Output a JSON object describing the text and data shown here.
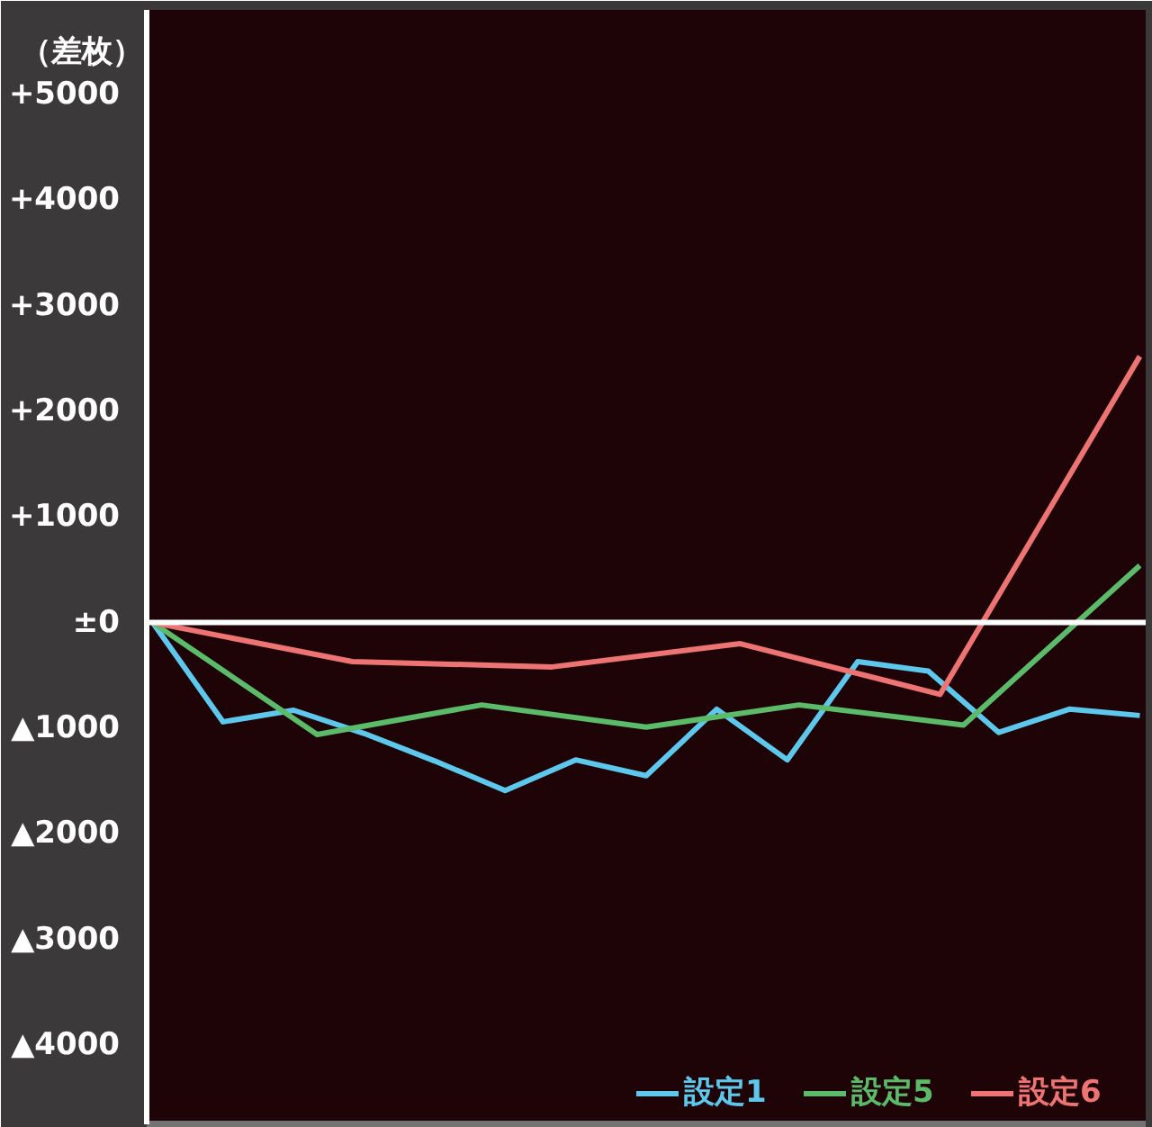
{
  "chart_data": {
    "type": "line",
    "ylabel": "（差枚）",
    "ylim": [
      -4750,
      5800
    ],
    "categories": [
      null,
      null,
      null,
      null,
      null,
      null,
      null,
      null,
      null,
      null,
      null,
      null,
      null,
      null,
      null,
      null,
      null,
      null,
      null,
      null,
      null,
      null,
      null,
      null,
      null,
      null,
      null,
      null,
      null,
      null,
      null,
      null,
      null,
      null,
      null,
      null,
      null,
      null,
      null,
      null,
      null,
      null,
      null,
      null,
      null,
      null,
      null,
      null,
      null,
      null,
      null,
      null,
      null,
      null,
      null,
      null,
      null,
      null,
      null,
      null,
      null,
      null,
      null,
      null,
      null,
      null,
      null,
      null,
      null,
      null,
      null,
      null,
      null,
      null,
      null,
      null,
      null,
      null,
      null,
      null,
      null,
      null,
      null,
      null,
      null
    ],
    "yticks": [
      {
        "value": 5000,
        "label": "+5000"
      },
      {
        "value": 4000,
        "label": "+4000"
      },
      {
        "value": 3000,
        "label": "+3000"
      },
      {
        "value": 2000,
        "label": "+2000"
      },
      {
        "value": 1000,
        "label": "+1000"
      },
      {
        "value": 0,
        "label": "±0"
      },
      {
        "value": -1000,
        "label": "▲1000"
      },
      {
        "value": -2000,
        "label": "▲2000"
      },
      {
        "value": -3000,
        "label": "▲3000"
      },
      {
        "value": -4000,
        "label": "▲4000"
      }
    ],
    "tick_labels": "y",
    "grid": false,
    "legend": "bottom right",
    "line_style": "solid",
    "ref_lines": [
      {
        "axis": "y",
        "value": 0,
        "color": "#ffffff"
      }
    ],
    "series": [
      {
        "name": "設定1",
        "color": "#5ec8ec",
        "values": [
          0,
          null,
          null,
          null,
          null,
          null,
          -940,
          null,
          null,
          null,
          null,
          null,
          -830,
          null,
          null,
          null,
          null,
          null,
          -1050,
          null,
          null,
          null,
          null,
          null,
          -1310,
          null,
          null,
          null,
          null,
          null,
          -1590,
          null,
          null,
          null,
          null,
          null,
          -1300,
          null,
          null,
          null,
          null,
          null,
          -1450,
          null,
          null,
          null,
          null,
          null,
          -820,
          null,
          null,
          null,
          null,
          null,
          -1300,
          null,
          null,
          null,
          null,
          null,
          -370,
          null,
          null,
          null,
          null,
          null,
          -460,
          null,
          null,
          null,
          null,
          null,
          -1040,
          null,
          null,
          null,
          null,
          null,
          -820,
          null,
          null,
          null,
          null,
          null,
          -880
        ]
      },
      {
        "name": "設定5",
        "color": "#5cbb68",
        "values": [
          0,
          null,
          null,
          null,
          null,
          null,
          null,
          null,
          null,
          null,
          null,
          null,
          null,
          null,
          -1060,
          null,
          null,
          null,
          null,
          null,
          null,
          null,
          null,
          null,
          null,
          null,
          null,
          null,
          -780,
          null,
          null,
          null,
          null,
          null,
          null,
          null,
          null,
          null,
          null,
          null,
          null,
          null,
          -990,
          null,
          null,
          null,
          null,
          null,
          null,
          null,
          null,
          null,
          null,
          null,
          null,
          -780,
          null,
          null,
          null,
          null,
          null,
          null,
          null,
          null,
          null,
          null,
          null,
          null,
          null,
          -970,
          null,
          null,
          null,
          null,
          null,
          null,
          null,
          null,
          null,
          null,
          null,
          null,
          null,
          null,
          540
        ]
      },
      {
        "name": "設定6",
        "color": "#ee7474",
        "values": [
          0,
          null,
          null,
          null,
          null,
          null,
          null,
          null,
          null,
          null,
          null,
          null,
          null,
          null,
          null,
          null,
          null,
          -370,
          null,
          null,
          null,
          null,
          null,
          null,
          null,
          null,
          null,
          null,
          null,
          null,
          null,
          null,
          null,
          null,
          -420,
          null,
          null,
          null,
          null,
          null,
          null,
          null,
          null,
          null,
          null,
          null,
          null,
          null,
          null,
          null,
          -200,
          null,
          null,
          null,
          null,
          null,
          null,
          null,
          null,
          null,
          null,
          null,
          null,
          null,
          null,
          null,
          null,
          -680,
          null,
          null,
          null,
          null,
          null,
          null,
          null,
          null,
          null,
          null,
          null,
          null,
          null,
          null,
          null,
          null,
          2520
        ]
      }
    ]
  }
}
